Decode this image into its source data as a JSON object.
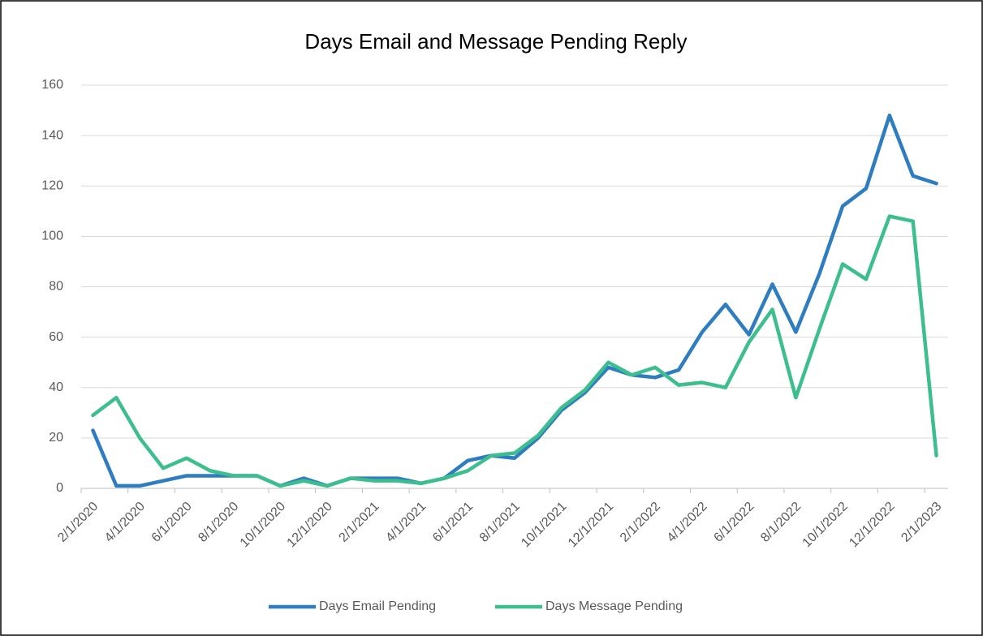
{
  "chart_data": {
    "type": "line",
    "title": "Days Email and Message Pending Reply",
    "categories": [
      "2/1/2020",
      null,
      "4/1/2020",
      null,
      "6/1/2020",
      null,
      "8/1/2020",
      null,
      "10/1/2020",
      null,
      "12/1/2020",
      null,
      "2/1/2021",
      null,
      "4/1/2021",
      null,
      "6/1/2021",
      null,
      "8/1/2021",
      null,
      "10/1/2021",
      null,
      "12/1/2021",
      null,
      "2/1/2022",
      null,
      "4/1/2022",
      null,
      "6/1/2022",
      null,
      "8/1/2022",
      null,
      "10/1/2022",
      null,
      "12/1/2022",
      null,
      "2/1/2023"
    ],
    "series": [
      {
        "name": "Days Email Pending",
        "color": "#2e7dc0",
        "values": [
          23,
          1,
          1,
          3,
          5,
          5,
          5,
          5,
          1,
          4,
          1,
          4,
          4,
          4,
          2,
          4,
          11,
          13,
          12,
          20,
          31,
          38,
          48,
          45,
          44,
          47,
          62,
          73,
          61,
          81,
          62,
          85,
          112,
          119,
          148,
          124,
          121
        ]
      },
      {
        "name": "Days Message Pending",
        "color": "#3dbe8e",
        "values": [
          29,
          36,
          20,
          8,
          12,
          7,
          5,
          5,
          1,
          3,
          1,
          4,
          3,
          3,
          2,
          4,
          7,
          13,
          14,
          21,
          32,
          39,
          50,
          45,
          48,
          41,
          42,
          40,
          58,
          71,
          36,
          63,
          89,
          83,
          108,
          106,
          13
        ]
      }
    ],
    "ylim": [
      0,
      160
    ],
    "yticks": [
      0,
      20,
      40,
      60,
      80,
      100,
      120,
      140,
      160
    ],
    "grid": true,
    "legend": "bottom"
  }
}
